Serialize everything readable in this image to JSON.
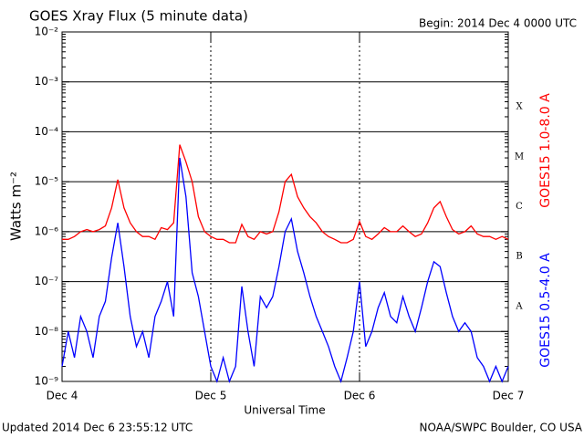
{
  "chart_data": {
    "type": "line",
    "log": true,
    "grid": true,
    "title": "GOES Xray Flux (5 minute data)",
    "subtitle": "Begin:  2014 Dec 4 0000 UTC",
    "x_label": "Universal Time",
    "y_label": "Watts m⁻²",
    "footer_left": "Updated 2014 Dec  6 23:55:12 UTC",
    "footer_right": "NOAA/SWPC Boulder, CO USA",
    "flare_classes": [
      {
        "label": "X",
        "min": 0.0001
      },
      {
        "label": "M",
        "min": 1e-05
      },
      {
        "label": "C",
        "min": 1e-06
      },
      {
        "label": "B",
        "min": 1e-07
      },
      {
        "label": "A",
        "min": 1e-08
      }
    ],
    "xlim": [
      0,
      72
    ],
    "xticks": [
      {
        "value": 0,
        "label": "Dec 4"
      },
      {
        "value": 24,
        "label": "Dec 5"
      },
      {
        "value": 48,
        "label": "Dec 6"
      },
      {
        "value": 72,
        "label": "Dec 7"
      }
    ],
    "ylim": [
      1e-09,
      0.01
    ],
    "yticks": [
      {
        "value": 1e-09,
        "label": "10⁻⁹"
      },
      {
        "value": 1e-08,
        "label": "10⁻⁸"
      },
      {
        "value": 1e-07,
        "label": "10⁻⁷"
      },
      {
        "value": 1e-06,
        "label": "10⁻⁶"
      },
      {
        "value": 1e-05,
        "label": "10⁻⁵"
      },
      {
        "value": 0.0001,
        "label": "10⁻⁴"
      },
      {
        "value": 0.001,
        "label": "10⁻³"
      },
      {
        "value": 0.01,
        "label": "10⁻²"
      }
    ],
    "x": [
      0,
      1,
      2,
      3,
      4,
      5,
      6,
      7,
      8,
      9,
      10,
      11,
      12,
      13,
      14,
      15,
      16,
      17,
      18,
      19,
      20,
      21,
      22,
      23,
      24,
      25,
      26,
      27,
      28,
      29,
      30,
      31,
      32,
      33,
      34,
      35,
      36,
      37,
      38,
      39,
      40,
      41,
      42,
      43,
      44,
      45,
      46,
      47,
      48,
      49,
      50,
      51,
      52,
      53,
      54,
      55,
      56,
      57,
      58,
      59,
      60,
      61,
      62,
      63,
      64,
      65,
      66,
      67,
      68,
      69,
      70,
      71,
      72
    ],
    "series": [
      {
        "name": "GOES15 1.0-8.0 A",
        "color": "#ff0000",
        "values": [
          7e-07,
          7e-07,
          8e-07,
          1e-06,
          1.1e-06,
          1e-06,
          1.1e-06,
          1.3e-06,
          3e-06,
          1.1e-05,
          3e-06,
          1.5e-06,
          1e-06,
          8e-07,
          8e-07,
          7e-07,
          1.2e-06,
          1.1e-06,
          1.5e-06,
          5.5e-05,
          2.5e-05,
          1e-05,
          2e-06,
          1e-06,
          8e-07,
          7e-07,
          7e-07,
          6e-07,
          6e-07,
          1.4e-06,
          8e-07,
          7e-07,
          1e-06,
          9e-07,
          1e-06,
          2.5e-06,
          1e-05,
          1.4e-05,
          5e-06,
          3e-06,
          2e-06,
          1.5e-06,
          1e-06,
          8e-07,
          7e-07,
          6e-07,
          6e-07,
          7e-07,
          1.6e-06,
          8e-07,
          7e-07,
          9e-07,
          1.2e-06,
          1e-06,
          1e-06,
          1.3e-06,
          1e-06,
          8e-07,
          9e-07,
          1.5e-06,
          3e-06,
          4e-06,
          2e-06,
          1.1e-06,
          9e-07,
          1e-06,
          1.3e-06,
          9e-07,
          8e-07,
          8e-07,
          7e-07,
          8e-07,
          7e-07
        ]
      },
      {
        "name": "GOES15 0.5-4.0 A",
        "color": "#0000ff",
        "values": [
          2e-09,
          1e-08,
          3e-09,
          2e-08,
          1e-08,
          3e-09,
          2e-08,
          4e-08,
          3e-07,
          1.5e-06,
          2e-07,
          2e-08,
          5e-09,
          1e-08,
          3e-09,
          2e-08,
          4e-08,
          1e-07,
          2e-08,
          3e-05,
          5e-06,
          1.5e-07,
          5e-08,
          1e-08,
          2e-09,
          1e-09,
          3e-09,
          1e-09,
          2e-09,
          8e-08,
          1e-08,
          2e-09,
          5e-08,
          3e-08,
          5e-08,
          2e-07,
          1e-06,
          1.8e-06,
          4e-07,
          1.5e-07,
          5e-08,
          2e-08,
          1e-08,
          5e-09,
          2e-09,
          1e-09,
          3e-09,
          1e-08,
          1e-07,
          5e-09,
          1e-08,
          3e-08,
          6e-08,
          2e-08,
          1.5e-08,
          5e-08,
          2e-08,
          1e-08,
          3e-08,
          1e-07,
          2.5e-07,
          2e-07,
          6e-08,
          2e-08,
          1e-08,
          1.5e-08,
          1e-08,
          3e-09,
          2e-09,
          1e-09,
          2e-09,
          1e-09,
          2e-09
        ]
      }
    ]
  }
}
